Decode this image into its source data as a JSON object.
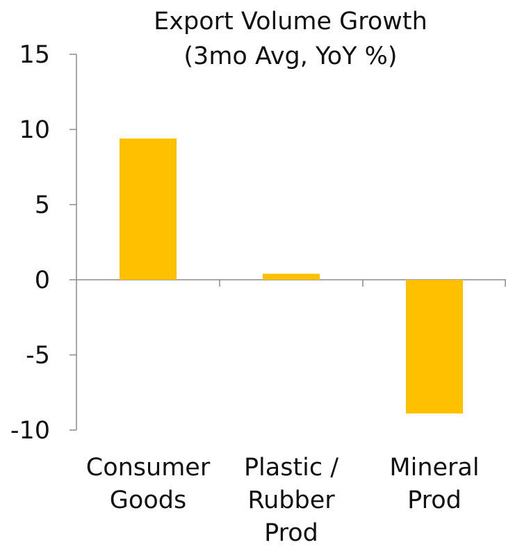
{
  "chart_data": {
    "type": "bar",
    "title": "Export Volume Growth",
    "subtitle": "(3mo Avg, YoY %)",
    "categories": [
      [
        "Consumer",
        "Goods"
      ],
      [
        "Plastic /",
        "Rubber",
        "Prod"
      ],
      [
        "Mineral",
        "Prod"
      ]
    ],
    "values": [
      9.4,
      0.4,
      -8.9
    ],
    "ylim": [
      -10,
      15
    ],
    "yticks": [
      "15",
      "10",
      "5",
      "0",
      "-5",
      "-10"
    ],
    "ytick_values": [
      15,
      10,
      5,
      0,
      -5,
      -10
    ],
    "grid": false,
    "bar_color": "#FFC000",
    "axis_color": "#8C8C8C"
  }
}
